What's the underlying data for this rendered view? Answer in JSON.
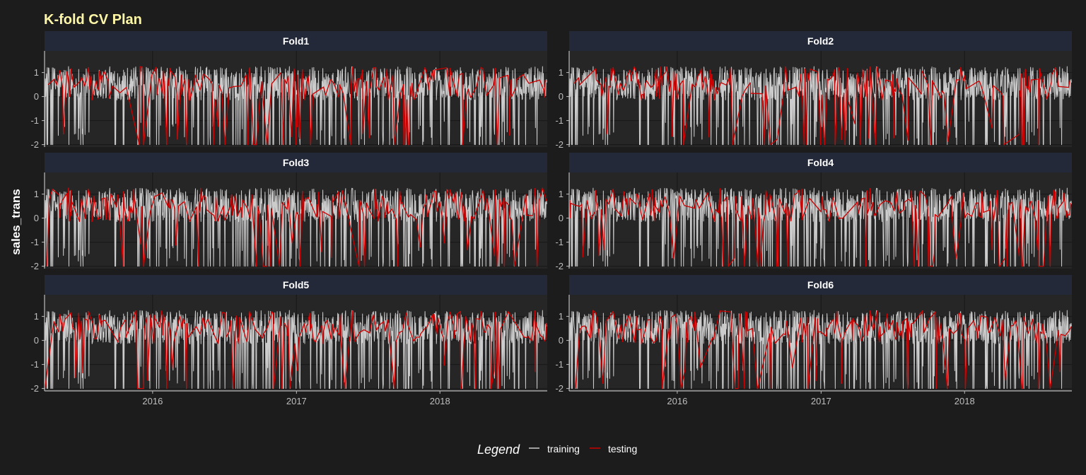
{
  "chart_data": {
    "type": "line",
    "title": "K-fold CV Plan",
    "ylabel": "sales_trans",
    "xlabel": "",
    "x_range": [
      "2015-04-01",
      "2018-10-01"
    ],
    "ylim": [
      -2.1,
      1.9
    ],
    "y_ticks": [
      -2,
      -1,
      0,
      1
    ],
    "x_ticks": [
      {
        "date": "2016-01-01",
        "label": "2016"
      },
      {
        "date": "2017-01-01",
        "label": "2017"
      },
      {
        "date": "2018-01-01",
        "label": "2018"
      }
    ],
    "grid": true,
    "legend": {
      "position": "bottom",
      "title": "Legend",
      "entries": [
        {
          "name": "training",
          "color": "#cccccc"
        },
        {
          "name": "testing",
          "color": "#cc0000"
        }
      ]
    },
    "series_summary": {
      "date_start": "2015-04-01",
      "date_end": "2018-09-30",
      "frequency": "daily",
      "typical_range": [
        -2,
        1.6
      ]
    },
    "panels": [
      {
        "name": "Fold1"
      },
      {
        "name": "Fold2"
      },
      {
        "name": "Fold3"
      },
      {
        "name": "Fold4"
      },
      {
        "name": "Fold5"
      },
      {
        "name": "Fold6"
      }
    ]
  },
  "colors": {
    "background": "#1c1c1c",
    "panel": "#262626",
    "strip": "#24293a",
    "grid": "#1a1a1a",
    "axis": "#bdbdbd",
    "title": "#fff7a8",
    "training": "#cccccc",
    "testing": "#cc0000"
  }
}
